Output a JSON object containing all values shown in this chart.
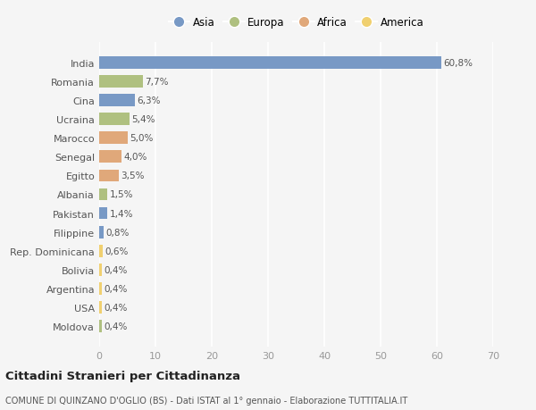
{
  "countries": [
    "India",
    "Romania",
    "Cina",
    "Ucraina",
    "Marocco",
    "Senegal",
    "Egitto",
    "Albania",
    "Pakistan",
    "Filippine",
    "Rep. Dominicana",
    "Bolivia",
    "Argentina",
    "USA",
    "Moldova"
  ],
  "values": [
    60.8,
    7.7,
    6.3,
    5.4,
    5.0,
    4.0,
    3.5,
    1.5,
    1.4,
    0.8,
    0.6,
    0.4,
    0.4,
    0.4,
    0.4
  ],
  "labels": [
    "60,8%",
    "7,7%",
    "6,3%",
    "5,4%",
    "5,0%",
    "4,0%",
    "3,5%",
    "1,5%",
    "1,4%",
    "0,8%",
    "0,6%",
    "0,4%",
    "0,4%",
    "0,4%",
    "0,4%"
  ],
  "continents": [
    "Asia",
    "Europa",
    "Asia",
    "Europa",
    "Africa",
    "Africa",
    "Africa",
    "Europa",
    "Asia",
    "Asia",
    "America",
    "America",
    "America",
    "America",
    "Europa"
  ],
  "continent_colors": {
    "Asia": "#7899c5",
    "Europa": "#afc080",
    "Africa": "#e0a87a",
    "America": "#f0d070"
  },
  "legend_order": [
    "Asia",
    "Europa",
    "Africa",
    "America"
  ],
  "title": "Cittadini Stranieri per Cittadinanza",
  "subtitle": "COMUNE DI QUINZANO D'OGLIO (BS) - Dati ISTAT al 1° gennaio - Elaborazione TUTTITALIA.IT",
  "xlim": [
    0,
    70
  ],
  "xticks": [
    0,
    10,
    20,
    30,
    40,
    50,
    60,
    70
  ],
  "bg_color": "#f5f5f5",
  "grid_color": "#ffffff",
  "bar_height": 0.65,
  "label_color": "#555555",
  "tick_color": "#999999"
}
